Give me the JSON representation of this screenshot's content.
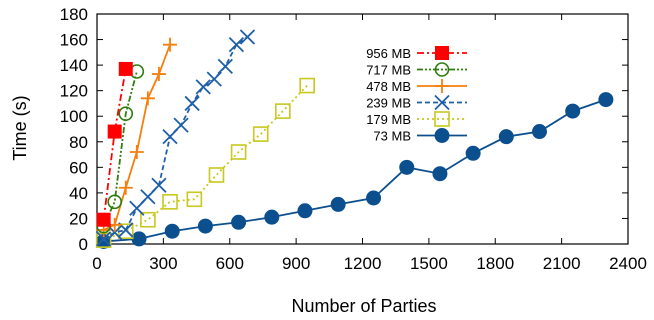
{
  "chart_data": {
    "type": "line",
    "title": "",
    "xlabel": "Number of Parties",
    "ylabel": "Time (s)",
    "xlim": [
      0,
      2400
    ],
    "ylim": [
      0,
      180
    ],
    "xticks": [
      0,
      300,
      600,
      900,
      1200,
      1500,
      1800,
      2100,
      2400
    ],
    "yticks": [
      0,
      20,
      40,
      60,
      80,
      100,
      120,
      140,
      160,
      180
    ],
    "grid": false,
    "legend_position": "top-center",
    "series": [
      {
        "name": "956 MB",
        "color": "#ff0000",
        "marker": "filled-square",
        "dash": "dash-dot",
        "x": [
          30,
          80,
          130
        ],
        "y": [
          19,
          88,
          137
        ]
      },
      {
        "name": "717 MB",
        "color": "#2e7d0e",
        "marker": "open-circle",
        "dash": "dash-dot-dot",
        "x": [
          30,
          80,
          130,
          180
        ],
        "y": [
          14,
          33,
          102,
          135
        ]
      },
      {
        "name": "478 MB",
        "color": "#f57f0e",
        "marker": "plus",
        "dash": "solid",
        "x": [
          30,
          80,
          130,
          180,
          230,
          280,
          330
        ],
        "y": [
          11,
          15,
          44,
          72,
          114,
          133,
          156
        ]
      },
      {
        "name": "239 MB",
        "color": "#1f5fa8",
        "marker": "cross",
        "dash": "dashed",
        "x": [
          30,
          80,
          130,
          180,
          230,
          280,
          330,
          380,
          430,
          480,
          530,
          580,
          630,
          680
        ],
        "y": [
          4,
          9,
          11,
          28,
          37,
          46,
          84,
          93,
          110,
          123,
          129,
          139,
          156,
          162
        ]
      },
      {
        "name": "179 MB",
        "color": "#c8c81e",
        "marker": "open-square",
        "dash": "dotted",
        "x": [
          30,
          130,
          230,
          330,
          440,
          540,
          640,
          740,
          840,
          950
        ],
        "y": [
          3,
          10,
          19,
          33,
          35,
          54,
          72,
          86,
          104,
          124
        ]
      },
      {
        "name": "73 MB",
        "color": "#0c4f8f",
        "marker": "filled-circle",
        "dash": "solid",
        "x": [
          30,
          190,
          340,
          490,
          640,
          790,
          940,
          1090,
          1250,
          1400,
          1550,
          1700,
          1850,
          2000,
          2150,
          2300
        ],
        "y": [
          2,
          4,
          10,
          14,
          17,
          21,
          26,
          31,
          36,
          60,
          55,
          71,
          84,
          88,
          104,
          113
        ]
      }
    ]
  }
}
